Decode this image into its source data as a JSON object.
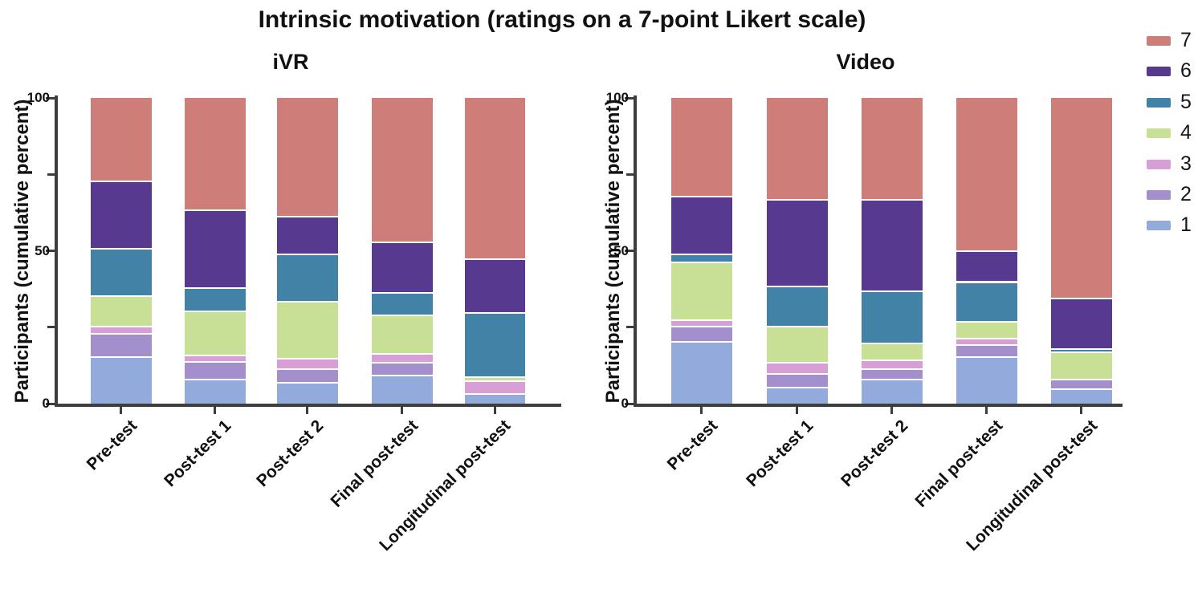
{
  "chart_data": {
    "type": "bar",
    "subtype": "stacked-100-percent",
    "title": "Intrinsic motivation (ratings on a 7-point Likert scale)",
    "ylabel": "Participants (cumulative percent)",
    "ylim": [
      0,
      100
    ],
    "yticks": [
      0,
      50,
      100
    ],
    "minor_yticks": [
      25,
      75
    ],
    "grid": false,
    "legend": {
      "position": "top-right",
      "entries_top_to_bottom": [
        "7",
        "6",
        "5",
        "4",
        "3",
        "2",
        "1"
      ]
    },
    "likert_colors": {
      "1": "#92abdc",
      "2": "#a28fcc",
      "3": "#d89fd7",
      "4": "#c7e095",
      "5": "#4282a6",
      "6": "#57398f",
      "7": "#cf7d79"
    },
    "panels": [
      {
        "title": "iVR",
        "categories": [
          "Pre-test",
          "Post-test 1",
          "Post-test 2",
          "Final post-test",
          "Longitudinal post-test"
        ],
        "series": [
          {
            "name": "1",
            "color": "#92abdc",
            "values": [
              15,
              7.5,
              6.5,
              9,
              3
            ]
          },
          {
            "name": "2",
            "color": "#a28fcc",
            "values": [
              7.5,
              6,
              4.5,
              4,
              0
            ]
          },
          {
            "name": "3",
            "color": "#d89fd7",
            "values": [
              2.5,
              2,
              3.5,
              3,
              4
            ]
          },
          {
            "name": "4",
            "color": "#c7e095",
            "values": [
              10,
              14.5,
              18.5,
              12.5,
              1.5
            ]
          },
          {
            "name": "5",
            "color": "#4282a6",
            "values": [
              15.5,
              7.5,
              15.5,
              7.5,
              21
            ]
          },
          {
            "name": "6",
            "color": "#57398f",
            "values": [
              22,
              25.5,
              12.5,
              16.5,
              17.5
            ]
          },
          {
            "name": "7",
            "color": "#cf7d79",
            "values": [
              27.5,
              37,
              39,
              47.5,
              53
            ]
          }
        ]
      },
      {
        "title": "Video",
        "categories": [
          "Pre-test",
          "Post-test 1",
          "Post-test 2",
          "Final post-test",
          "Longitudinal post-test"
        ],
        "series": [
          {
            "name": "1",
            "color": "#92abdc",
            "values": [
              20,
              5,
              7.5,
              15,
              4.5
            ]
          },
          {
            "name": "2",
            "color": "#a28fcc",
            "values": [
              5,
              4.5,
              3.5,
              4,
              3
            ]
          },
          {
            "name": "3",
            "color": "#d89fd7",
            "values": [
              2,
              3.5,
              3,
              2,
              0
            ]
          },
          {
            "name": "4",
            "color": "#c7e095",
            "values": [
              19,
              12,
              5.5,
              5.5,
              9
            ]
          },
          {
            "name": "5",
            "color": "#4282a6",
            "values": [
              2.5,
              13,
              17,
              13,
              1
            ]
          },
          {
            "name": "6",
            "color": "#57398f",
            "values": [
              19,
              28.5,
              30,
              10,
              16.5
            ]
          },
          {
            "name": "7",
            "color": "#cf7d79",
            "values": [
              32.5,
              33.5,
              33.5,
              50.5,
              66
            ]
          }
        ]
      }
    ]
  }
}
